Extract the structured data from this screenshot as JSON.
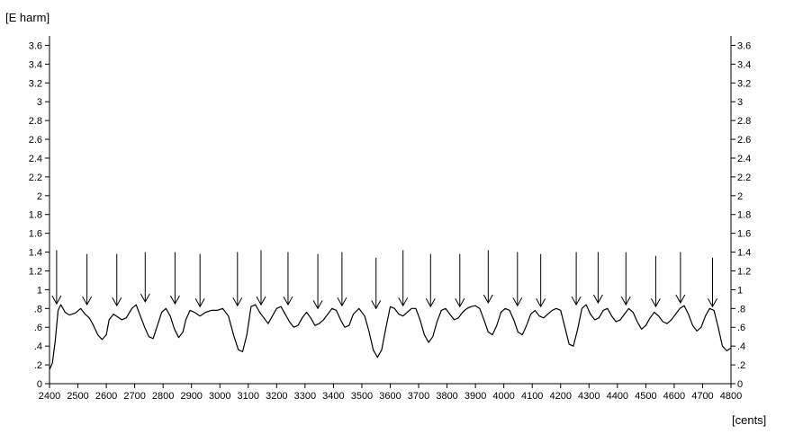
{
  "chart_data": {
    "type": "line",
    "title": "",
    "ylabel": "[E harm]",
    "xlabel": "[cents]",
    "xlim": [
      2400,
      4800
    ],
    "ylim": [
      0,
      3.7
    ],
    "x_ticks": [
      2400,
      2500,
      2600,
      2700,
      2800,
      2900,
      3000,
      3100,
      3200,
      3300,
      3400,
      3500,
      3600,
      3700,
      3800,
      3900,
      4000,
      4100,
      4200,
      4300,
      4400,
      4500,
      4600,
      4700,
      4800
    ],
    "y_ticks": [
      0,
      0.2,
      0.4,
      0.6,
      0.8,
      1,
      1.2,
      1.4,
      1.6,
      1.8,
      2,
      2.2,
      2.4,
      2.6,
      2.8,
      3,
      3.2,
      3.4,
      3.6
    ],
    "y_tick_labels": [
      "0",
      ".2",
      ".4",
      ".6",
      ".8",
      "1",
      "1.2",
      "1.4",
      "1.6",
      "1.8",
      "2",
      "2.2",
      "2.4",
      "2.6",
      "2.8",
      "3",
      "3.2",
      "3.4",
      "3.6"
    ],
    "grid": false,
    "right_axis": true,
    "series": [
      {
        "name": "",
        "x": [
          2400,
          2410,
          2420,
          2430,
          2440,
          2455,
          2470,
          2490,
          2510,
          2525,
          2540,
          2555,
          2570,
          2585,
          2600,
          2610,
          2625,
          2640,
          2655,
          2670,
          2690,
          2705,
          2720,
          2735,
          2750,
          2765,
          2780,
          2795,
          2810,
          2825,
          2840,
          2855,
          2870,
          2880,
          2895,
          2910,
          2930,
          2950,
          2970,
          2990,
          3010,
          3030,
          3050,
          3065,
          3080,
          3095,
          3110,
          3125,
          3140,
          3155,
          3170,
          3185,
          3200,
          3215,
          3230,
          3245,
          3260,
          3275,
          3290,
          3305,
          3320,
          3335,
          3350,
          3365,
          3380,
          3395,
          3410,
          3425,
          3440,
          3455,
          3470,
          3490,
          3510,
          3525,
          3540,
          3555,
          3570,
          3585,
          3600,
          3615,
          3630,
          3645,
          3660,
          3675,
          3690,
          3705,
          3720,
          3735,
          3750,
          3765,
          3780,
          3795,
          3810,
          3825,
          3840,
          3855,
          3870,
          3885,
          3900,
          3915,
          3930,
          3945,
          3960,
          3975,
          3990,
          4005,
          4020,
          4035,
          4050,
          4065,
          4080,
          4095,
          4110,
          4125,
          4140,
          4155,
          4170,
          4185,
          4200,
          4215,
          4230,
          4245,
          4260,
          4275,
          4290,
          4305,
          4320,
          4335,
          4350,
          4365,
          4380,
          4395,
          4410,
          4425,
          4440,
          4455,
          4470,
          4485,
          4500,
          4515,
          4530,
          4545,
          4560,
          4575,
          4590,
          4605,
          4620,
          4635,
          4650,
          4665,
          4680,
          4695,
          4710,
          4725,
          4740,
          4755,
          4770,
          4785,
          4800
        ],
        "y": [
          0.15,
          0.22,
          0.45,
          0.78,
          0.84,
          0.76,
          0.73,
          0.75,
          0.8,
          0.74,
          0.7,
          0.62,
          0.52,
          0.47,
          0.52,
          0.68,
          0.74,
          0.71,
          0.68,
          0.7,
          0.8,
          0.84,
          0.72,
          0.6,
          0.5,
          0.48,
          0.62,
          0.76,
          0.8,
          0.72,
          0.58,
          0.49,
          0.55,
          0.68,
          0.78,
          0.76,
          0.72,
          0.76,
          0.78,
          0.78,
          0.8,
          0.72,
          0.5,
          0.36,
          0.34,
          0.52,
          0.82,
          0.84,
          0.76,
          0.7,
          0.64,
          0.72,
          0.8,
          0.82,
          0.74,
          0.66,
          0.6,
          0.62,
          0.7,
          0.76,
          0.7,
          0.62,
          0.64,
          0.68,
          0.74,
          0.8,
          0.78,
          0.68,
          0.6,
          0.62,
          0.74,
          0.8,
          0.72,
          0.56,
          0.36,
          0.28,
          0.36,
          0.6,
          0.82,
          0.8,
          0.74,
          0.72,
          0.76,
          0.8,
          0.8,
          0.68,
          0.52,
          0.44,
          0.5,
          0.66,
          0.78,
          0.8,
          0.74,
          0.68,
          0.7,
          0.76,
          0.8,
          0.82,
          0.83,
          0.8,
          0.68,
          0.55,
          0.52,
          0.62,
          0.76,
          0.8,
          0.78,
          0.68,
          0.55,
          0.52,
          0.62,
          0.74,
          0.78,
          0.72,
          0.7,
          0.74,
          0.78,
          0.8,
          0.78,
          0.6,
          0.42,
          0.4,
          0.58,
          0.8,
          0.84,
          0.74,
          0.68,
          0.7,
          0.78,
          0.8,
          0.72,
          0.66,
          0.68,
          0.74,
          0.8,
          0.76,
          0.66,
          0.58,
          0.62,
          0.7,
          0.76,
          0.72,
          0.66,
          0.64,
          0.68,
          0.74,
          0.8,
          0.83,
          0.74,
          0.62,
          0.56,
          0.6,
          0.72,
          0.8,
          0.78,
          0.6,
          0.4,
          0.35,
          0.38
        ]
      }
    ],
    "annotations": [
      {
        "type": "arrow",
        "x": 2425,
        "y_tip": 0.85,
        "y_tail": 1.42
      },
      {
        "type": "arrow",
        "x": 2532,
        "y_tip": 0.84,
        "y_tail": 1.38
      },
      {
        "type": "arrow",
        "x": 2637,
        "y_tip": 0.83,
        "y_tail": 1.38
      },
      {
        "type": "arrow",
        "x": 2737,
        "y_tip": 0.87,
        "y_tail": 1.4
      },
      {
        "type": "arrow",
        "x": 2842,
        "y_tip": 0.85,
        "y_tail": 1.4
      },
      {
        "type": "arrow",
        "x": 2930,
        "y_tip": 0.82,
        "y_tail": 1.38
      },
      {
        "type": "arrow",
        "x": 3062,
        "y_tip": 0.83,
        "y_tail": 1.4
      },
      {
        "type": "arrow",
        "x": 3145,
        "y_tip": 0.84,
        "y_tail": 1.42
      },
      {
        "type": "arrow",
        "x": 3240,
        "y_tip": 0.84,
        "y_tail": 1.4
      },
      {
        "type": "arrow",
        "x": 3345,
        "y_tip": 0.8,
        "y_tail": 1.38
      },
      {
        "type": "arrow",
        "x": 3430,
        "y_tip": 0.83,
        "y_tail": 1.4
      },
      {
        "type": "arrow",
        "x": 3550,
        "y_tip": 0.8,
        "y_tail": 1.34
      },
      {
        "type": "arrow",
        "x": 3645,
        "y_tip": 0.83,
        "y_tail": 1.42
      },
      {
        "type": "arrow",
        "x": 3742,
        "y_tip": 0.82,
        "y_tail": 1.38
      },
      {
        "type": "arrow",
        "x": 3845,
        "y_tip": 0.82,
        "y_tail": 1.38
      },
      {
        "type": "arrow",
        "x": 3945,
        "y_tip": 0.86,
        "y_tail": 1.42
      },
      {
        "type": "arrow",
        "x": 4048,
        "y_tip": 0.83,
        "y_tail": 1.4
      },
      {
        "type": "arrow",
        "x": 4130,
        "y_tip": 0.82,
        "y_tail": 1.38
      },
      {
        "type": "arrow",
        "x": 4255,
        "y_tip": 0.84,
        "y_tail": 1.4
      },
      {
        "type": "arrow",
        "x": 4332,
        "y_tip": 0.86,
        "y_tail": 1.4
      },
      {
        "type": "arrow",
        "x": 4430,
        "y_tip": 0.84,
        "y_tail": 1.4
      },
      {
        "type": "arrow",
        "x": 4535,
        "y_tip": 0.82,
        "y_tail": 1.36
      },
      {
        "type": "arrow",
        "x": 4622,
        "y_tip": 0.86,
        "y_tail": 1.4
      },
      {
        "type": "arrow",
        "x": 4735,
        "y_tip": 0.82,
        "y_tail": 1.34
      }
    ],
    "colors": {
      "line": "#000000",
      "axis": "#000000",
      "background": "#ffffff"
    }
  }
}
